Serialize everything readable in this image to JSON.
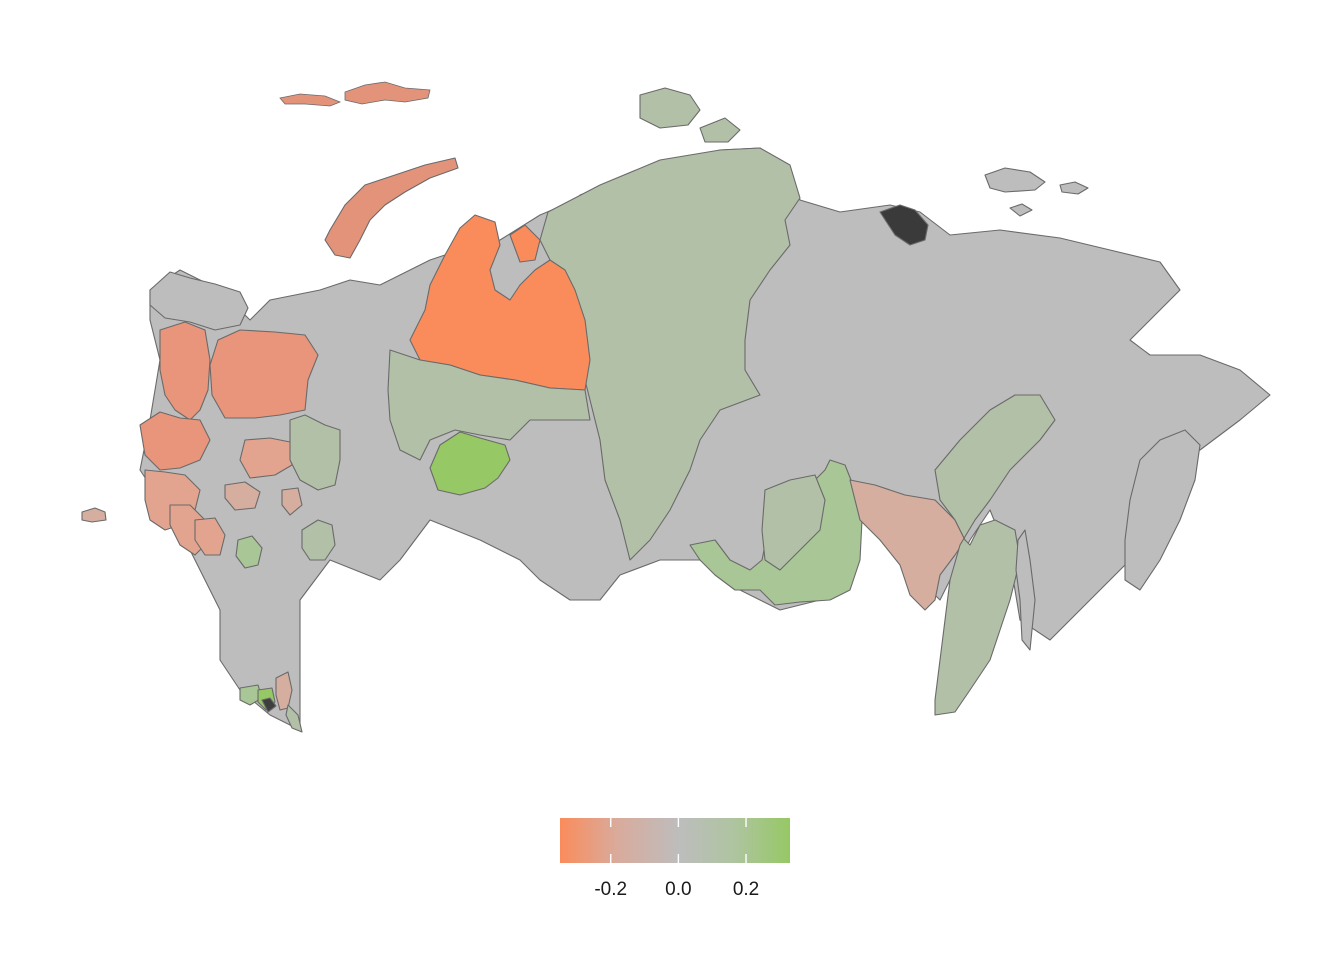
{
  "colors": {
    "negative_strong": "#fa8c5c",
    "negative_mid": "#e3a48f",
    "negative_weak": "#d5ae9f",
    "neutral": "#bdbdbd",
    "positive_weak": "#b3c0a8",
    "positive_mid": "#a9c696",
    "positive_strong": "#96c865",
    "border": "#6a6a6a",
    "background": "#ffffff"
  },
  "legend": {
    "scale_min": -0.35,
    "scale_max": 0.33,
    "ticks": [
      {
        "value": -0.2,
        "label": "-0.2"
      },
      {
        "value": 0.0,
        "label": "0.0"
      },
      {
        "value": 0.2,
        "label": "0.2"
      }
    ],
    "gradient_stops": [
      "#fa8c5c",
      "#d9ab9c",
      "#bdbdbd",
      "#aec49f",
      "#96c865"
    ]
  }
}
